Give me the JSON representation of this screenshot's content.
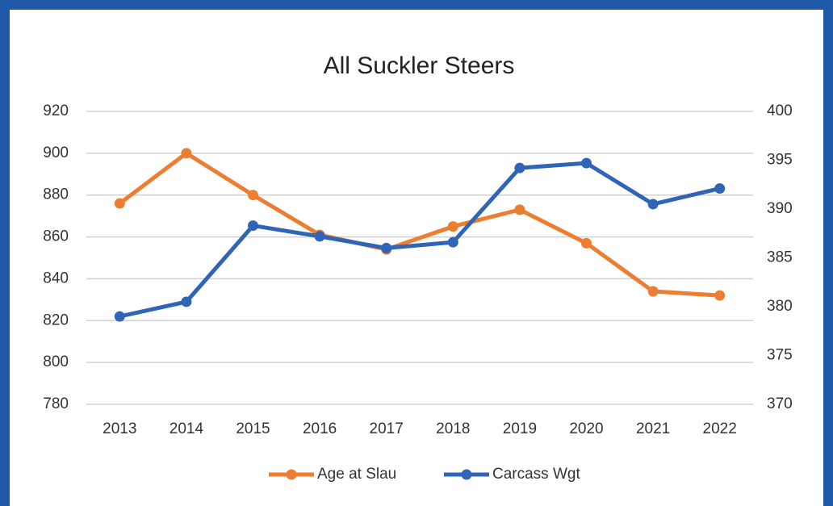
{
  "chart_data": {
    "type": "line",
    "title": "All Suckler Steers",
    "categories": [
      "2013",
      "2014",
      "2015",
      "2016",
      "2017",
      "2018",
      "2019",
      "2020",
      "2021",
      "2022"
    ],
    "series": [
      {
        "name": "Age at Slau",
        "color": "#ed7d31",
        "values": [
          876,
          900,
          880,
          861,
          854,
          865,
          873,
          857,
          834,
          832
        ]
      },
      {
        "name": "Carcass Wgt",
        "color": "#2f64b6",
        "axis": "y2",
        "values": [
          379,
          380.5,
          388.3,
          387.2,
          386,
          386.6,
          394.2,
          394.7,
          390.5,
          392.1
        ]
      }
    ],
    "ylim": [
      780,
      920
    ],
    "yticks": [
      780,
      800,
      820,
      840,
      860,
      880,
      900,
      920
    ],
    "y2lim": [
      370,
      400
    ],
    "y2ticks": [
      370,
      375,
      380,
      385,
      390,
      395,
      400
    ],
    "grid": true,
    "legend": "bottom"
  }
}
